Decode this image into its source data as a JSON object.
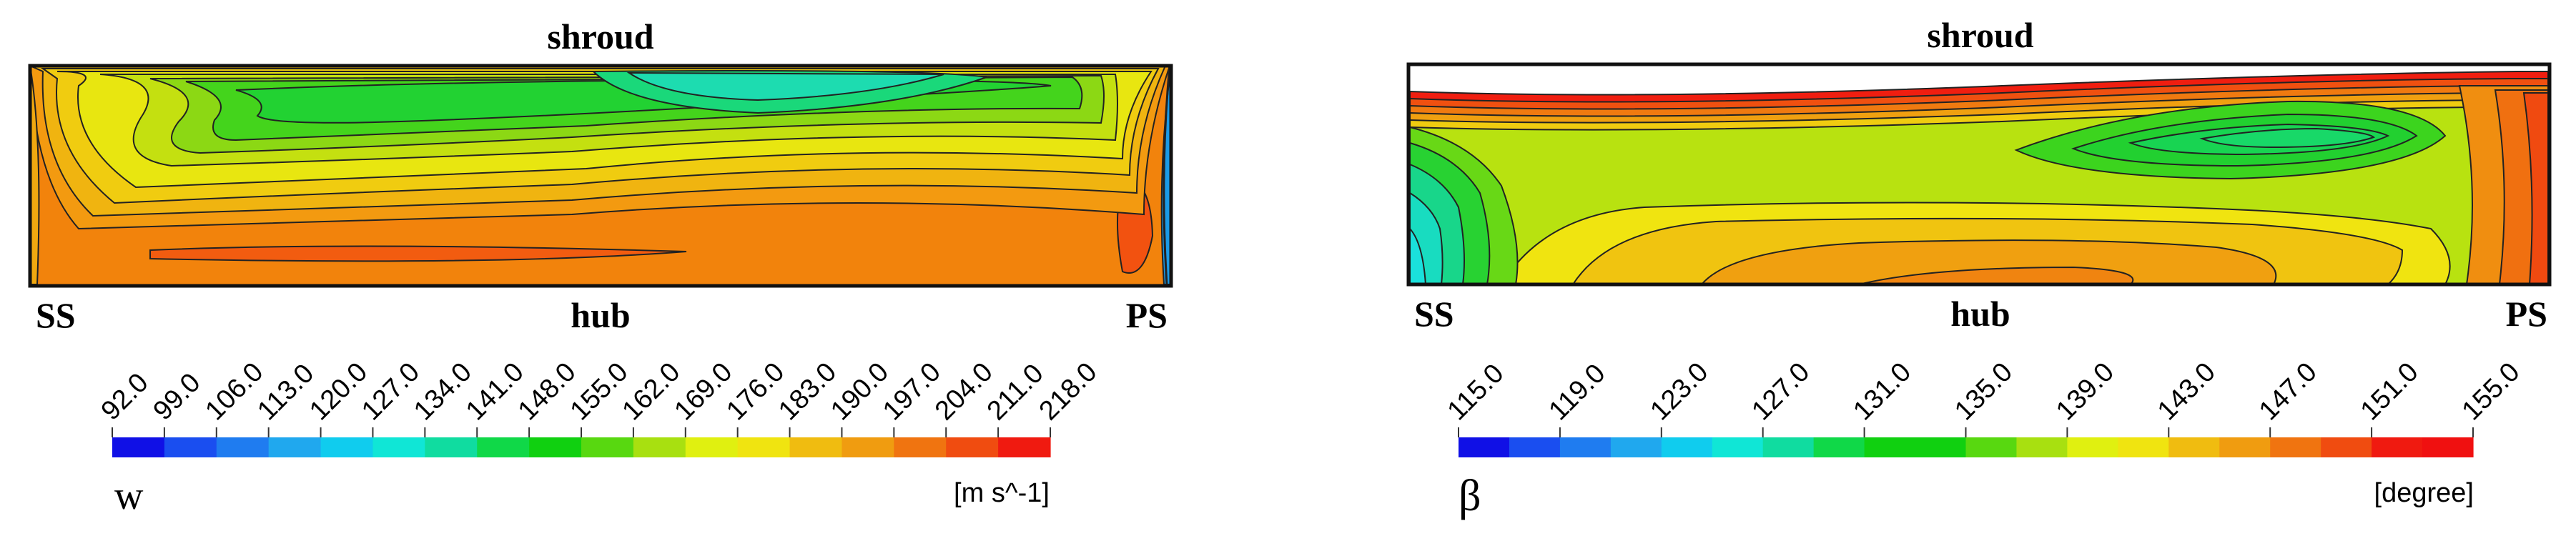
{
  "panels": [
    {
      "label_top": "shroud",
      "label_bottom": "hub",
      "label_left": "SS",
      "label_right": "PS",
      "legend_symbol": "w",
      "legend_unit": "[m s^-1]"
    },
    {
      "label_top": "shroud",
      "label_bottom": "hub",
      "label_left": "SS",
      "label_right": "PS",
      "legend_symbol": "β",
      "legend_unit": "[degree]"
    }
  ],
  "chart_data": [
    {
      "type": "heatmap",
      "variable": "w",
      "unit": "[m s^-1]",
      "colorbar_ticks": [
        "92.0",
        "99.0",
        "106.0",
        "113.0",
        "120.0",
        "127.0",
        "134.0",
        "141.0",
        "148.0",
        "155.0",
        "162.0",
        "169.0",
        "176.0",
        "183.0",
        "190.0",
        "197.0",
        "204.0",
        "211.0",
        "218.0"
      ],
      "colorbar_colors": [
        "#1010e6",
        "#1a4ef0",
        "#1f7cf0",
        "#20a8ee",
        "#10ccee",
        "#10e6d6",
        "#10dca0",
        "#10d848",
        "#10d010",
        "#58d810",
        "#a8e010",
        "#e0f010",
        "#f0e410",
        "#f0bc10",
        "#f09c10",
        "#f07410",
        "#f04c10",
        "#f01a10"
      ]
    },
    {
      "type": "heatmap",
      "variable": "β",
      "unit": "[degree]",
      "colorbar_ticks": [
        "115.0",
        "119.0",
        "123.0",
        "127.0",
        "131.0",
        "135.0",
        "139.0",
        "143.0",
        "147.0",
        "151.0",
        "155.0"
      ],
      "colorbar_colors": [
        "#1010e6",
        "#1a4ef0",
        "#1f7cf0",
        "#20a8ee",
        "#10ccee",
        "#10e6d6",
        "#10dca0",
        "#10d848",
        "#10d010",
        "#10d010",
        "#58d810",
        "#a8e010",
        "#e0f010",
        "#f0e410",
        "#f0bc10",
        "#f09c10",
        "#f07410",
        "#f04c10",
        "#f01a10",
        "#f01010"
      ]
    }
  ]
}
